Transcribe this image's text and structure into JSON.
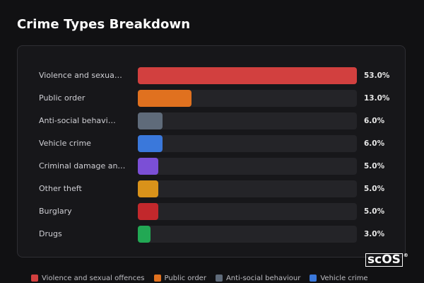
{
  "title": "Crime Types Breakdown",
  "logo": "scOS",
  "chart_data": {
    "type": "bar",
    "orientation": "horizontal",
    "title": "Crime Types Breakdown",
    "categories": [
      "Violence and sexua…",
      "Public order",
      "Anti-social behavi…",
      "Vehicle crime",
      "Criminal damage an…",
      "Other theft",
      "Burglary",
      "Drugs"
    ],
    "values": [
      53.0,
      13.0,
      6.0,
      6.0,
      5.0,
      5.0,
      5.0,
      3.0
    ],
    "value_labels": [
      "53.0%",
      "13.0%",
      "6.0%",
      "6.0%",
      "5.0%",
      "5.0%",
      "5.0%",
      "3.0%"
    ],
    "colors": [
      "#d2403f",
      "#e0711f",
      "#5f6b7a",
      "#3a78db",
      "#7b4fd6",
      "#d9921a",
      "#c2282c",
      "#22a854"
    ],
    "xlim": [
      0,
      53
    ],
    "legend_position": "bottom",
    "legend": [
      {
        "name": "Violence and sexual offences",
        "color": "#d2403f"
      },
      {
        "name": "Public order",
        "color": "#e0711f"
      },
      {
        "name": "Anti-social behaviour",
        "color": "#5f6b7a"
      },
      {
        "name": "Vehicle crime",
        "color": "#3a78db"
      }
    ]
  }
}
